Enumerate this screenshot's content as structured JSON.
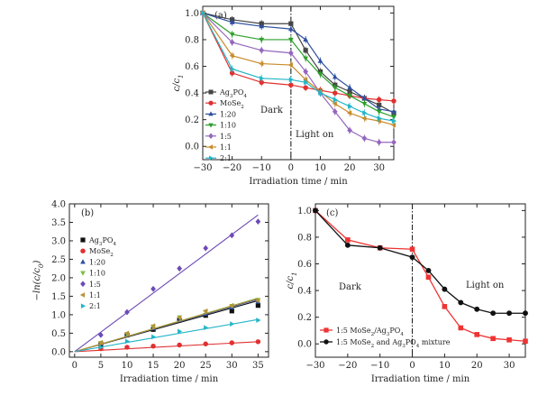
{
  "chart_data": [
    {
      "type": "line",
      "panel_label": "(a)",
      "xlabel": "Irradiation time / min",
      "ylabel": "c/c",
      "ylabel_sub": "1",
      "xlim": [
        -30,
        35
      ],
      "ylim": [
        -0.1,
        1.05
      ],
      "xticks": [
        -30,
        -20,
        -10,
        0,
        10,
        20,
        30
      ],
      "yticks": [
        0.0,
        0.2,
        0.4,
        0.6,
        0.8,
        1.0
      ],
      "x": [
        -30,
        -20,
        -10,
        0,
        5,
        10,
        15,
        20,
        25,
        30,
        35
      ],
      "divider_x": 0,
      "annotations": {
        "dark": "Dark",
        "light": "Light on"
      },
      "legend_position": "left",
      "series": [
        {
          "name": "Ag",
          "sub": "3",
          "suffix": "PO",
          "sub2": "4",
          "color": "#444444",
          "marker": "square",
          "values": [
            1.0,
            0.95,
            0.92,
            0.92,
            0.72,
            0.56,
            0.46,
            0.41,
            0.36,
            0.31,
            0.25
          ]
        },
        {
          "name": "MoSe",
          "sub": "2",
          "suffix": "",
          "sub2": "",
          "color": "#e03030",
          "marker": "circle",
          "values": [
            1.0,
            0.55,
            0.48,
            0.46,
            0.44,
            0.42,
            0.4,
            0.38,
            0.36,
            0.35,
            0.34
          ]
        },
        {
          "name": "1:20",
          "color": "#2d4fa0",
          "marker": "triangle-up",
          "values": [
            1.0,
            0.93,
            0.9,
            0.88,
            0.8,
            0.64,
            0.52,
            0.44,
            0.36,
            0.28,
            0.26
          ]
        },
        {
          "name": "1:10",
          "color": "#2ca02c",
          "marker": "triangle-down",
          "values": [
            1.0,
            0.84,
            0.8,
            0.8,
            0.66,
            0.54,
            0.44,
            0.38,
            0.32,
            0.26,
            0.22
          ]
        },
        {
          "name": "1:5",
          "color": "#9467bd",
          "marker": "diamond",
          "values": [
            1.0,
            0.78,
            0.72,
            0.7,
            0.56,
            0.4,
            0.26,
            0.12,
            0.06,
            0.03,
            0.03
          ]
        },
        {
          "name": "1:1",
          "color": "#c98a2a",
          "marker": "triangle-left",
          "values": [
            1.0,
            0.68,
            0.62,
            0.61,
            0.5,
            0.41,
            0.32,
            0.25,
            0.21,
            0.19,
            0.16
          ]
        },
        {
          "name": "2:1",
          "color": "#22b5c8",
          "marker": "triangle-right",
          "values": [
            1.0,
            0.58,
            0.51,
            0.5,
            0.48,
            0.4,
            0.35,
            0.3,
            0.25,
            0.21,
            0.19
          ]
        }
      ]
    },
    {
      "type": "scatter",
      "panel_label": "(b)",
      "xlabel": "Irradiation time / min",
      "ylabel": "−ln(c/c",
      "ylabel_sub": "0",
      "ylabel_end": ")",
      "xlim": [
        -1,
        37
      ],
      "ylim": [
        -0.15,
        4.0
      ],
      "xticks": [
        0,
        5,
        10,
        15,
        20,
        25,
        30,
        35
      ],
      "yticks": [
        0.0,
        0.5,
        1.0,
        1.5,
        2.0,
        2.5,
        3.0,
        3.5,
        4.0
      ],
      "legend_position": "top-left",
      "series": [
        {
          "name": "Ag",
          "sub": "3",
          "suffix": "PO",
          "sub2": "4",
          "color": "#111111",
          "marker": "square",
          "x": [
            0,
            5,
            10,
            15,
            20,
            25,
            30,
            35
          ],
          "values": [
            0,
            0.2,
            0.45,
            0.6,
            0.85,
            0.98,
            1.1,
            1.25
          ],
          "fit": [
            0,
            1.38
          ]
        },
        {
          "name": "MoSe",
          "sub": "2",
          "suffix": "",
          "sub2": "",
          "color": "#e03030",
          "marker": "circle",
          "x": [
            0,
            5,
            10,
            15,
            20,
            25,
            30,
            35
          ],
          "values": [
            0,
            0.08,
            0.12,
            0.15,
            0.18,
            0.21,
            0.24,
            0.27
          ],
          "fit": [
            0,
            0.27
          ]
        },
        {
          "name": "1:20",
          "color": "#2d4fa0",
          "marker": "triangle-up",
          "x": [
            0,
            5,
            10,
            15,
            20,
            25,
            30,
            35
          ],
          "values": [
            0,
            0.22,
            0.45,
            0.63,
            0.85,
            1.02,
            1.2,
            1.35
          ],
          "fit": [
            0,
            1.42
          ]
        },
        {
          "name": "1:10",
          "color": "#7bc043",
          "marker": "triangle-down",
          "x": [
            0,
            5,
            10,
            15,
            20,
            25,
            30,
            35
          ],
          "values": [
            0,
            0.24,
            0.48,
            0.68,
            0.93,
            1.08,
            1.24,
            1.4
          ],
          "fit": [
            0,
            1.45
          ]
        },
        {
          "name": "1:5",
          "color": "#6c4ab6",
          "marker": "diamond",
          "x": [
            0,
            5,
            10,
            15,
            20,
            25,
            30,
            35
          ],
          "values": [
            0,
            0.45,
            1.07,
            1.7,
            2.25,
            2.8,
            3.15,
            3.52
          ],
          "fit": [
            0,
            3.7
          ]
        },
        {
          "name": "1:1",
          "color": "#b9923a",
          "marker": "triangle-left",
          "x": [
            0,
            5,
            10,
            15,
            20,
            25,
            30,
            35
          ],
          "values": [
            0,
            0.25,
            0.5,
            0.7,
            0.92,
            1.1,
            1.25,
            1.38
          ],
          "fit": [
            0,
            1.44
          ]
        },
        {
          "name": "2:1",
          "color": "#22b5c8",
          "marker": "triangle-right",
          "x": [
            0,
            5,
            10,
            15,
            20,
            25,
            30,
            35
          ],
          "values": [
            0,
            0.12,
            0.28,
            0.4,
            0.55,
            0.65,
            0.75,
            0.85
          ],
          "fit": [
            0,
            0.87
          ]
        }
      ]
    },
    {
      "type": "line",
      "panel_label": "(c)",
      "xlabel": "Irradiation time / min",
      "ylabel": "c/c",
      "ylabel_sub": "1",
      "xlim": [
        -30,
        35
      ],
      "ylim": [
        -0.1,
        1.05
      ],
      "xticks": [
        -30,
        -20,
        -10,
        0,
        10,
        20,
        30
      ],
      "yticks": [
        0.0,
        0.2,
        0.4,
        0.6,
        0.8,
        1.0
      ],
      "divider_x": 0,
      "annotations": {
        "dark": "Dark",
        "light": "Light on"
      },
      "legend_position": "bottom-left",
      "series": [
        {
          "name": "1:5 MoSe",
          "sub": "2",
          "suffix": "/Ag",
          "sub2": "3",
          "suffix2": "PO",
          "sub3": "4",
          "color": "#ee3333",
          "marker": "square",
          "x": [
            -30,
            -20,
            -10,
            0,
            5,
            10,
            15,
            20,
            25,
            30,
            35
          ],
          "values": [
            1.0,
            0.78,
            0.72,
            0.71,
            0.5,
            0.28,
            0.12,
            0.07,
            0.04,
            0.03,
            0.02
          ]
        },
        {
          "name": "1:5 MoSe",
          "sub": "2",
          "suffix": " and Ag",
          "sub2": "3",
          "suffix2": "PO",
          "sub3": "4",
          "suffix3": " mixture",
          "color": "#111111",
          "marker": "circle",
          "x": [
            -30,
            -20,
            -10,
            0,
            5,
            10,
            15,
            20,
            25,
            30,
            35
          ],
          "values": [
            1.0,
            0.74,
            0.72,
            0.65,
            0.55,
            0.41,
            0.31,
            0.26,
            0.23,
            0.23,
            0.23
          ]
        }
      ]
    }
  ]
}
